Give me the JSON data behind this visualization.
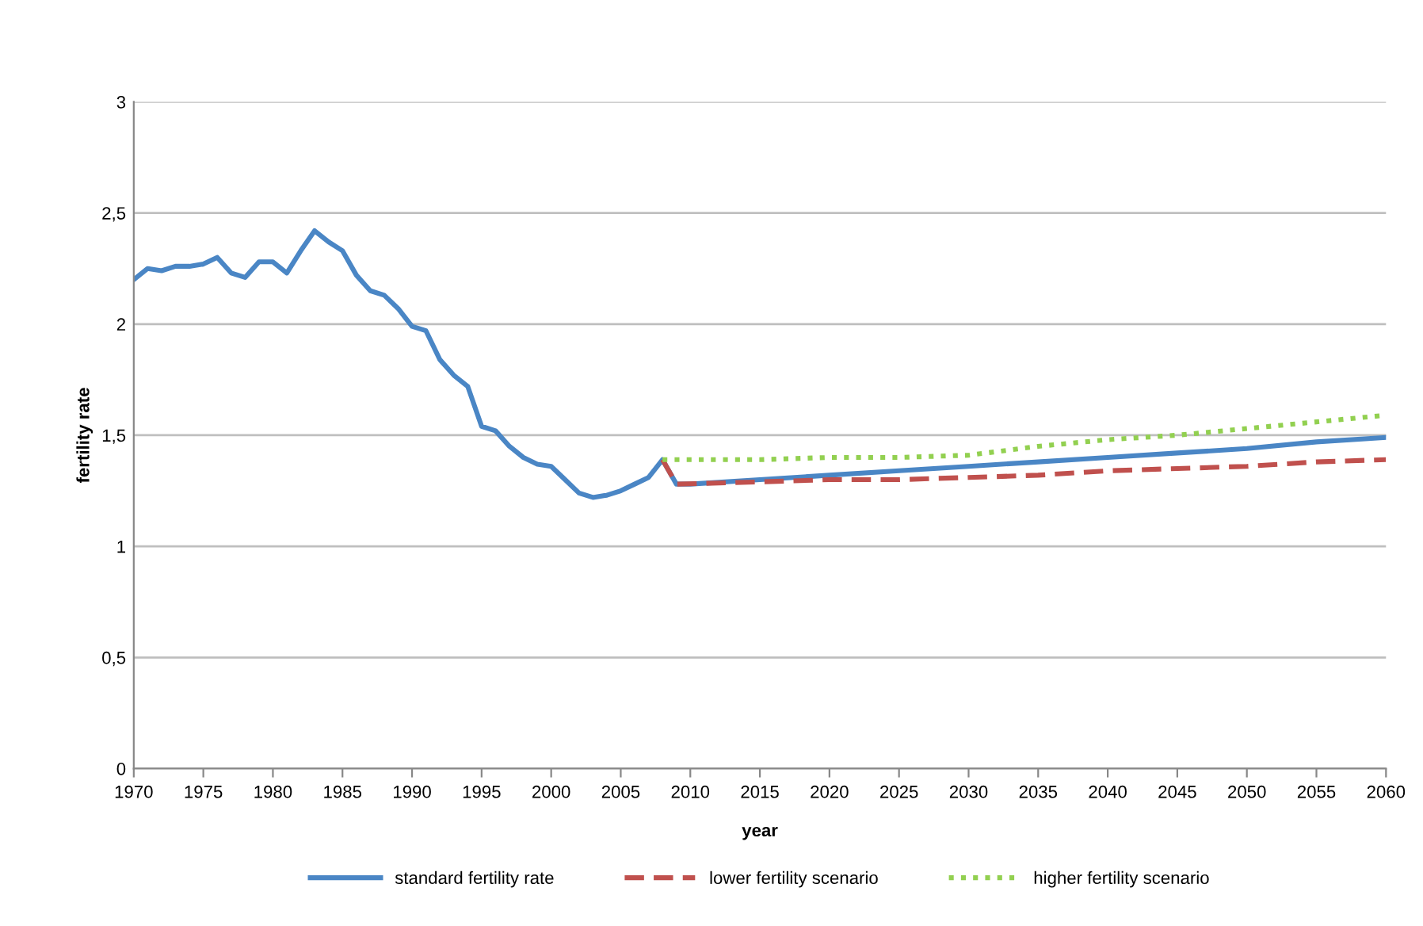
{
  "chart_data": {
    "type": "line",
    "xlabel": "year",
    "ylabel": "fertility rate",
    "xlim": [
      1970,
      2060
    ],
    "xticks": [
      1970,
      1975,
      1980,
      1985,
      1990,
      1995,
      2000,
      2005,
      2010,
      2015,
      2020,
      2025,
      2030,
      2035,
      2040,
      2045,
      2050,
      2055,
      2060
    ],
    "ylim": [
      0,
      3
    ],
    "yticks": [
      0,
      {
        "value": 0.5,
        "label": "0,5"
      },
      1,
      {
        "value": 1.5,
        "label": "1,5"
      },
      2,
      {
        "value": 2.5,
        "label": "2,5"
      },
      3
    ],
    "grid": "y",
    "legend": "bottom",
    "marker": "none",
    "series": [
      {
        "name": "standard fertility rate",
        "color": "#4a86c5",
        "line_style": "solid",
        "x": [
          1970,
          1971,
          1972,
          1973,
          1974,
          1975,
          1976,
          1977,
          1978,
          1979,
          1980,
          1981,
          1982,
          1983,
          1984,
          1985,
          1986,
          1987,
          1988,
          1989,
          1990,
          1991,
          1992,
          1993,
          1994,
          1995,
          1996,
          1997,
          1998,
          1999,
          2000,
          2001,
          2002,
          2003,
          2004,
          2005,
          2006,
          2007,
          2008,
          2009,
          2010,
          2015,
          2020,
          2025,
          2030,
          2035,
          2040,
          2045,
          2050,
          2055,
          2060
        ],
        "values": [
          2.2,
          2.25,
          2.24,
          2.26,
          2.26,
          2.27,
          2.3,
          2.23,
          2.21,
          2.28,
          2.28,
          2.23,
          2.33,
          2.42,
          2.37,
          2.33,
          2.22,
          2.15,
          2.13,
          2.07,
          1.99,
          1.97,
          1.84,
          1.77,
          1.72,
          1.54,
          1.52,
          1.45,
          1.4,
          1.37,
          1.36,
          1.3,
          1.24,
          1.22,
          1.23,
          1.25,
          1.28,
          1.31,
          1.39,
          1.28,
          1.28,
          1.3,
          1.32,
          1.34,
          1.36,
          1.38,
          1.4,
          1.42,
          1.44,
          1.47,
          1.49
        ]
      },
      {
        "name": "lower fertility scenario",
        "color": "#c0504d",
        "line_style": "dashed",
        "x": [
          2008,
          2009,
          2015,
          2020,
          2025,
          2030,
          2035,
          2040,
          2045,
          2050,
          2055,
          2060
        ],
        "values": [
          1.39,
          1.28,
          1.29,
          1.3,
          1.3,
          1.31,
          1.32,
          1.34,
          1.35,
          1.36,
          1.38,
          1.39
        ]
      },
      {
        "name": "higher fertility scenario",
        "color": "#92d050",
        "line_style": "dotted",
        "x": [
          2008,
          2015,
          2020,
          2025,
          2030,
          2035,
          2040,
          2045,
          2050,
          2055,
          2060
        ],
        "values": [
          1.39,
          1.39,
          1.4,
          1.4,
          1.41,
          1.45,
          1.48,
          1.5,
          1.53,
          1.56,
          1.59
        ]
      }
    ]
  }
}
